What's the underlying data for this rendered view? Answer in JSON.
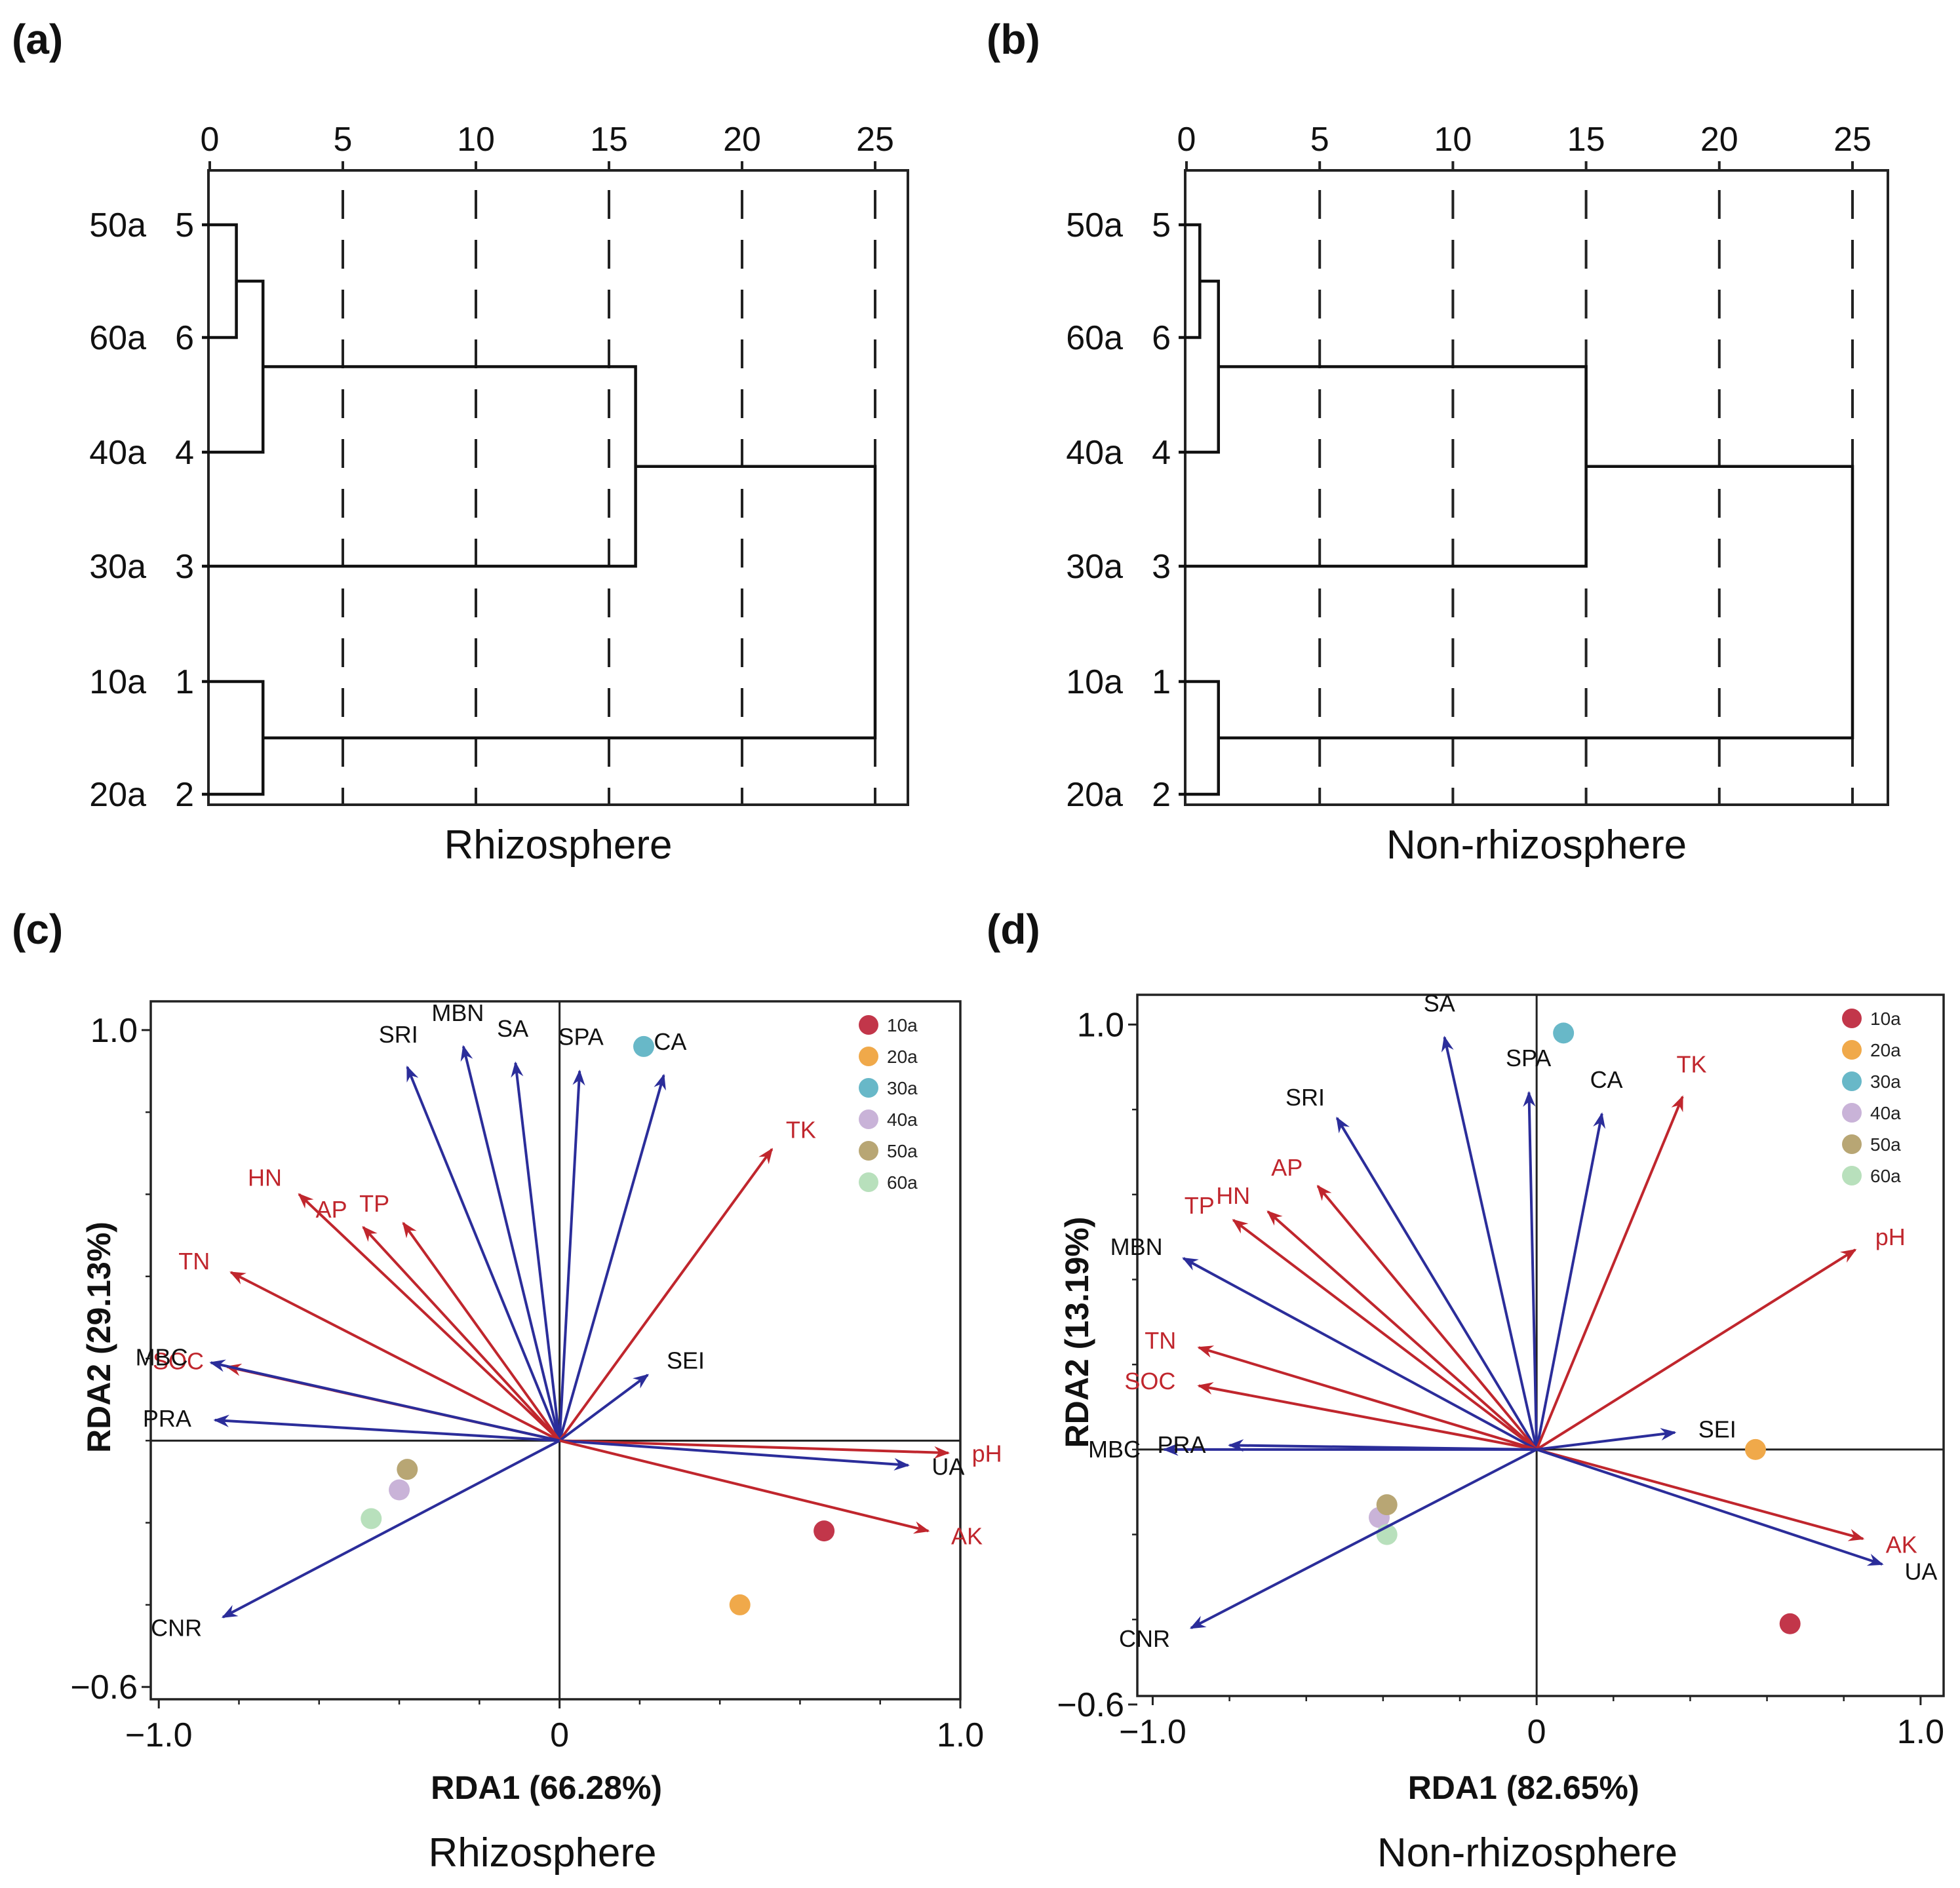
{
  "panels": {
    "a": {
      "label": "(a)",
      "title": "Rhizosphere"
    },
    "b": {
      "label": "(b)",
      "title": "Non-rhizosphere"
    },
    "c": {
      "label": "(c)",
      "title": "Rhizosphere"
    },
    "d": {
      "label": "(d)",
      "title": "Non-rhizosphere"
    }
  },
  "colors": {
    "env_arrow": "#c0262d",
    "resp_arrow": "#2b2d9a",
    "env_text": "#c0262d",
    "resp_text": "#111111",
    "10a": "#c2364a",
    "20a": "#f0a94a",
    "30a": "#68b8c8",
    "40a": "#c9b3d8",
    "50a": "#b8a674",
    "60a": "#b8e0bc"
  },
  "chart_data": [
    {
      "id": "a",
      "type": "dendrogram",
      "title": "Rhizosphere",
      "xlim": [
        0,
        25
      ],
      "ticks": [
        "0",
        "5",
        "10",
        "15",
        "20",
        "25"
      ],
      "leaves": [
        {
          "name": "50a",
          "id": "5"
        },
        {
          "name": "60a",
          "id": "6"
        },
        {
          "name": "40a",
          "id": "4"
        },
        {
          "name": "30a",
          "id": "3"
        },
        {
          "name": "10a",
          "id": "1"
        },
        {
          "name": "20a",
          "id": "2"
        }
      ],
      "merges": [
        {
          "a": 0,
          "b": 1,
          "h": 1
        },
        {
          "a": "m0",
          "b": 2,
          "h": 2
        },
        {
          "a": 4,
          "b": 5,
          "h": 2
        },
        {
          "a": "m1",
          "b": 3,
          "h": 16
        },
        {
          "a": "m3",
          "b": "m2",
          "h": 25
        }
      ]
    },
    {
      "id": "b",
      "type": "dendrogram",
      "title": "Non-rhizosphere",
      "xlim": [
        0,
        25
      ],
      "ticks": [
        "0",
        "5",
        "10",
        "15",
        "20",
        "25"
      ],
      "leaves": [
        {
          "name": "50a",
          "id": "5"
        },
        {
          "name": "60a",
          "id": "6"
        },
        {
          "name": "40a",
          "id": "4"
        },
        {
          "name": "30a",
          "id": "3"
        },
        {
          "name": "10a",
          "id": "1"
        },
        {
          "name": "20a",
          "id": "2"
        }
      ],
      "merges": [
        {
          "a": 0,
          "b": 1,
          "h": 0.5
        },
        {
          "a": "m0",
          "b": 2,
          "h": 1.2
        },
        {
          "a": 4,
          "b": 5,
          "h": 1.2
        },
        {
          "a": "m1",
          "b": 3,
          "h": 15
        },
        {
          "a": "m3",
          "b": "m2",
          "h": 25
        }
      ]
    },
    {
      "id": "c",
      "type": "scatter",
      "subtype": "rda_biplot",
      "title": "Rhizosphere",
      "xlabel": "RDA1 (66.28%)",
      "ylabel": "RDA2 (29.13%)",
      "xlim": [
        -1.02,
        1.0
      ],
      "ylim": [
        -0.63,
        1.07
      ],
      "xticks": [
        {
          "v": -1.0,
          "t": "−1.0"
        },
        {
          "v": 0,
          "t": "0"
        },
        {
          "v": 1.0,
          "t": "1.0"
        }
      ],
      "yticks": [
        {
          "v": 1.0,
          "t": "1.0"
        },
        {
          "v": -0.6,
          "t": "−0.6"
        }
      ],
      "vectors": [
        {
          "name": "SRI",
          "kind": "response",
          "x": -0.38,
          "y": 0.91
        },
        {
          "name": "MBN",
          "kind": "response",
          "x": -0.24,
          "y": 0.96
        },
        {
          "name": "SA",
          "kind": "response",
          "x": -0.11,
          "y": 0.92
        },
        {
          "name": "SPA",
          "kind": "response",
          "x": 0.05,
          "y": 0.9
        },
        {
          "name": "CA",
          "kind": "response",
          "x": 0.26,
          "y": 0.89
        },
        {
          "name": "TK",
          "kind": "env",
          "x": 0.53,
          "y": 0.71
        },
        {
          "name": "HN",
          "kind": "env",
          "x": -0.65,
          "y": 0.6
        },
        {
          "name": "AP",
          "kind": "env",
          "x": -0.49,
          "y": 0.52
        },
        {
          "name": "TP",
          "kind": "env",
          "x": -0.39,
          "y": 0.53
        },
        {
          "name": "TN",
          "kind": "env",
          "x": -0.82,
          "y": 0.41
        },
        {
          "name": "SOC",
          "kind": "env",
          "x": -0.83,
          "y": 0.18
        },
        {
          "name": "MBC",
          "kind": "response",
          "x": -0.87,
          "y": 0.19
        },
        {
          "name": "PRA",
          "kind": "response",
          "x": -0.86,
          "y": 0.05
        },
        {
          "name": "SEI",
          "kind": "response",
          "x": 0.22,
          "y": 0.16
        },
        {
          "name": "pH",
          "kind": "env",
          "x": 0.97,
          "y": -0.03
        },
        {
          "name": "UA",
          "kind": "response",
          "x": 0.87,
          "y": -0.06
        },
        {
          "name": "AK",
          "kind": "env",
          "x": 0.92,
          "y": -0.22
        },
        {
          "name": "CNR",
          "kind": "response",
          "x": -0.84,
          "y": -0.43
        }
      ],
      "points": [
        {
          "group": "10a",
          "x": 0.66,
          "y": -0.22
        },
        {
          "group": "20a",
          "x": 0.45,
          "y": -0.4
        },
        {
          "group": "30a",
          "x": 0.21,
          "y": 0.96
        },
        {
          "group": "40a",
          "x": -0.4,
          "y": -0.12
        },
        {
          "group": "50a",
          "x": -0.38,
          "y": -0.07
        },
        {
          "group": "60a",
          "x": -0.47,
          "y": -0.19
        }
      ],
      "legend": [
        "10a",
        "20a",
        "30a",
        "40a",
        "50a",
        "60a"
      ]
    },
    {
      "id": "d",
      "type": "scatter",
      "subtype": "rda_biplot",
      "title": "Non-rhizosphere",
      "xlabel": "RDA1 (82.65%)",
      "ylabel": "RDA2 (13.19%)",
      "xlim": [
        -1.04,
        1.06
      ],
      "ylim": [
        -0.58,
        1.07
      ],
      "xticks": [
        {
          "v": -1.0,
          "t": "−1.0"
        },
        {
          "v": 0,
          "t": "0"
        },
        {
          "v": 1.0,
          "t": "1.0"
        }
      ],
      "yticks": [
        {
          "v": 1.0,
          "t": "1.0"
        },
        {
          "v": -0.6,
          "t": "−0.6"
        }
      ],
      "vectors": [
        {
          "name": "SA",
          "kind": "response",
          "x": -0.24,
          "y": 0.97
        },
        {
          "name": "SRI",
          "kind": "response",
          "x": -0.52,
          "y": 0.78
        },
        {
          "name": "SPA",
          "kind": "response",
          "x": -0.02,
          "y": 0.84
        },
        {
          "name": "CA",
          "kind": "response",
          "x": 0.17,
          "y": 0.79
        },
        {
          "name": "TK",
          "kind": "env",
          "x": 0.38,
          "y": 0.83
        },
        {
          "name": "AP",
          "kind": "env",
          "x": -0.57,
          "y": 0.62
        },
        {
          "name": "HN",
          "kind": "env",
          "x": -0.7,
          "y": 0.56
        },
        {
          "name": "TP",
          "kind": "env",
          "x": -0.79,
          "y": 0.54
        },
        {
          "name": "MBN",
          "kind": "response",
          "x": -0.92,
          "y": 0.45
        },
        {
          "name": "pH",
          "kind": "env",
          "x": 0.83,
          "y": 0.47
        },
        {
          "name": "TN",
          "kind": "env",
          "x": -0.88,
          "y": 0.24
        },
        {
          "name": "SOC",
          "kind": "env",
          "x": -0.88,
          "y": 0.15
        },
        {
          "name": "MBC",
          "kind": "response",
          "x": -0.97,
          "y": 0.0
        },
        {
          "name": "PRA",
          "kind": "response",
          "x": -0.8,
          "y": 0.01
        },
        {
          "name": "SEI",
          "kind": "response",
          "x": 0.36,
          "y": 0.04
        },
        {
          "name": "AK",
          "kind": "env",
          "x": 0.85,
          "y": -0.21
        },
        {
          "name": "UA",
          "kind": "response",
          "x": 0.9,
          "y": -0.27
        },
        {
          "name": "CNR",
          "kind": "response",
          "x": -0.9,
          "y": -0.42
        }
      ],
      "points": [
        {
          "group": "10a",
          "x": 0.66,
          "y": -0.41
        },
        {
          "group": "20a",
          "x": 0.57,
          "y": 0.0
        },
        {
          "group": "30a",
          "x": 0.07,
          "y": 0.98
        },
        {
          "group": "40a",
          "x": -0.41,
          "y": -0.16
        },
        {
          "group": "50a",
          "x": -0.39,
          "y": -0.13
        },
        {
          "group": "60a",
          "x": -0.39,
          "y": -0.2
        }
      ],
      "legend": [
        "10a",
        "20a",
        "30a",
        "40a",
        "50a",
        "60a"
      ]
    }
  ]
}
